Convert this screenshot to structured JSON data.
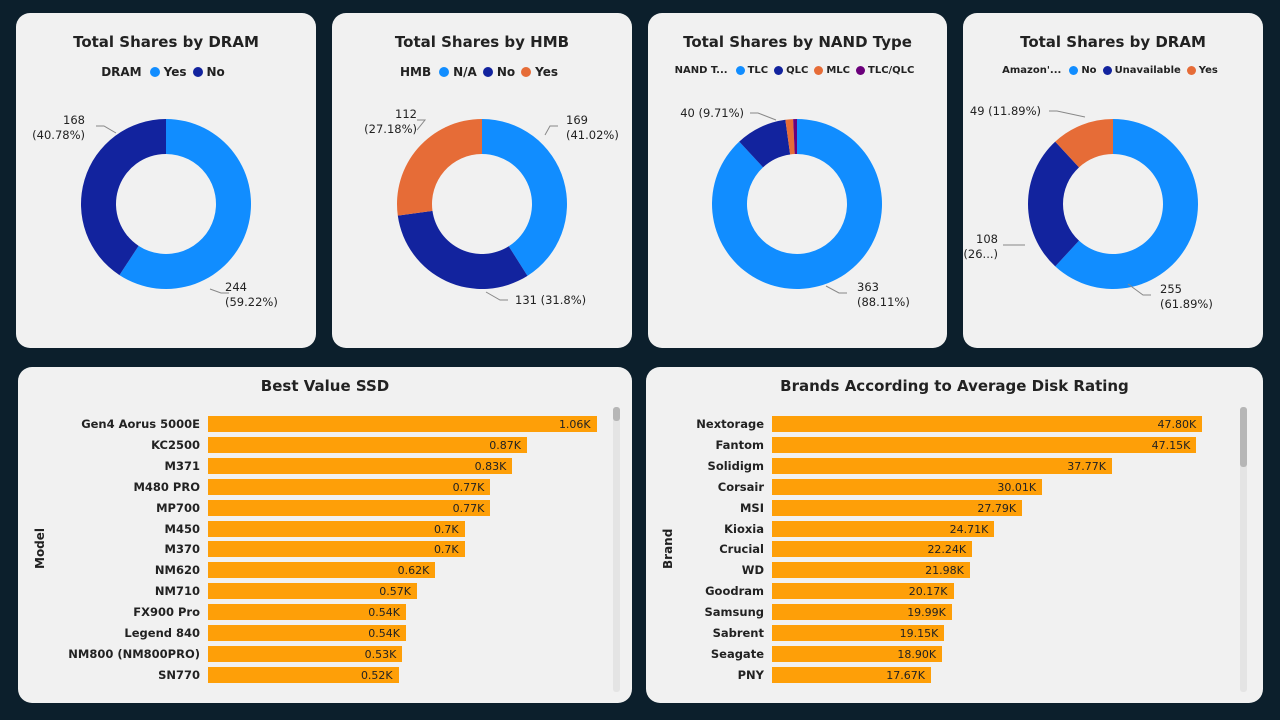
{
  "chart_data": [
    {
      "type": "pie",
      "title": "Total Shares by DRAM",
      "legend_title": "DRAM",
      "series": [
        {
          "name": "Yes",
          "value": 244,
          "label_value": "244",
          "label_pct": "(59.22%)",
          "color": "#118dff"
        },
        {
          "name": "No",
          "value": 168,
          "label_value": "168",
          "label_pct": "(40.78%)",
          "color": "#12239e"
        }
      ]
    },
    {
      "type": "pie",
      "title": "Total Shares by HMB",
      "legend_title": "HMB",
      "series": [
        {
          "name": "N/A",
          "value": 169,
          "label_value": "169",
          "label_pct": "(41.02%)",
          "color": "#118dff"
        },
        {
          "name": "No",
          "value": 131,
          "label_value": "131",
          "label_pct": "(31.8%)",
          "color": "#12239e"
        },
        {
          "name": "Yes",
          "value": 112,
          "label_value": "112",
          "label_pct": "(27.18%)",
          "color": "#e66c37"
        }
      ]
    },
    {
      "type": "pie",
      "title": "Total Shares by NAND Type",
      "legend_title": "NAND T...",
      "series": [
        {
          "name": "TLC",
          "value": 363,
          "label_value": "363",
          "label_pct": "(88.11%)",
          "color": "#118dff"
        },
        {
          "name": "QLC",
          "value": 40,
          "label_value": "40",
          "label_pct": "(9.71%)",
          "color": "#12239e"
        },
        {
          "name": "MLC",
          "value": 6,
          "label_value": "",
          "label_pct": "",
          "color": "#e66c37"
        },
        {
          "name": "TLC/QLC",
          "value": 3,
          "label_value": "",
          "label_pct": "",
          "color": "#6b007b"
        }
      ]
    },
    {
      "type": "pie",
      "title": "Total Shares by DRAM",
      "legend_title": "Amazon'...",
      "series": [
        {
          "name": "No",
          "value": 255,
          "label_value": "255",
          "label_pct": "(61.89%)",
          "color": "#118dff"
        },
        {
          "name": "Unavailable",
          "value": 108,
          "label_value": "108",
          "label_pct": "(26...)",
          "color": "#12239e"
        },
        {
          "name": "Yes",
          "value": 49,
          "label_value": "49",
          "label_pct": "(11.89%)",
          "color": "#e66c37"
        }
      ]
    },
    {
      "type": "bar",
      "title": "Best Value SSD",
      "ylabel": "Model",
      "bar_color": "#fe9f08",
      "xlim": [
        0,
        1.2
      ],
      "categories": [
        "Gen4 Aorus 5000E",
        "KC2500",
        "M371",
        "M480 PRO",
        "MP700",
        "M450",
        "M370",
        "NM620",
        "NM710",
        "FX900 Pro",
        "Legend 840",
        "NM800 (NM800PRO)",
        "SN770"
      ],
      "values": [
        1.06,
        0.87,
        0.83,
        0.77,
        0.77,
        0.7,
        0.7,
        0.62,
        0.57,
        0.54,
        0.54,
        0.53,
        0.52
      ],
      "value_labels": [
        "1.06K",
        "0.87K",
        "0.83K",
        "0.77K",
        "0.77K",
        "0.7K",
        "0.7K",
        "0.62K",
        "0.57K",
        "0.54K",
        "0.54K",
        "0.53K",
        "0.52K"
      ]
    },
    {
      "type": "bar",
      "title": "Brands According to Average Disk Rating",
      "ylabel": "Brand",
      "bar_color": "#fe9f08",
      "xlim": [
        0,
        55
      ],
      "categories": [
        "Nextorage",
        "Fantom",
        "Solidigm",
        "Corsair",
        "MSI",
        "Kioxia",
        "Crucial",
        "WD",
        "Goodram",
        "Samsung",
        "Sabrent",
        "Seagate",
        "PNY"
      ],
      "values": [
        47.8,
        47.15,
        37.77,
        30.01,
        27.79,
        24.71,
        22.24,
        21.98,
        20.17,
        19.99,
        19.15,
        18.9,
        17.67
      ],
      "value_labels": [
        "47.80K",
        "47.15K",
        "37.77K",
        "30.01K",
        "27.79K",
        "24.71K",
        "22.24K",
        "21.98K",
        "20.17K",
        "19.99K",
        "19.15K",
        "18.90K",
        "17.67K"
      ]
    }
  ]
}
